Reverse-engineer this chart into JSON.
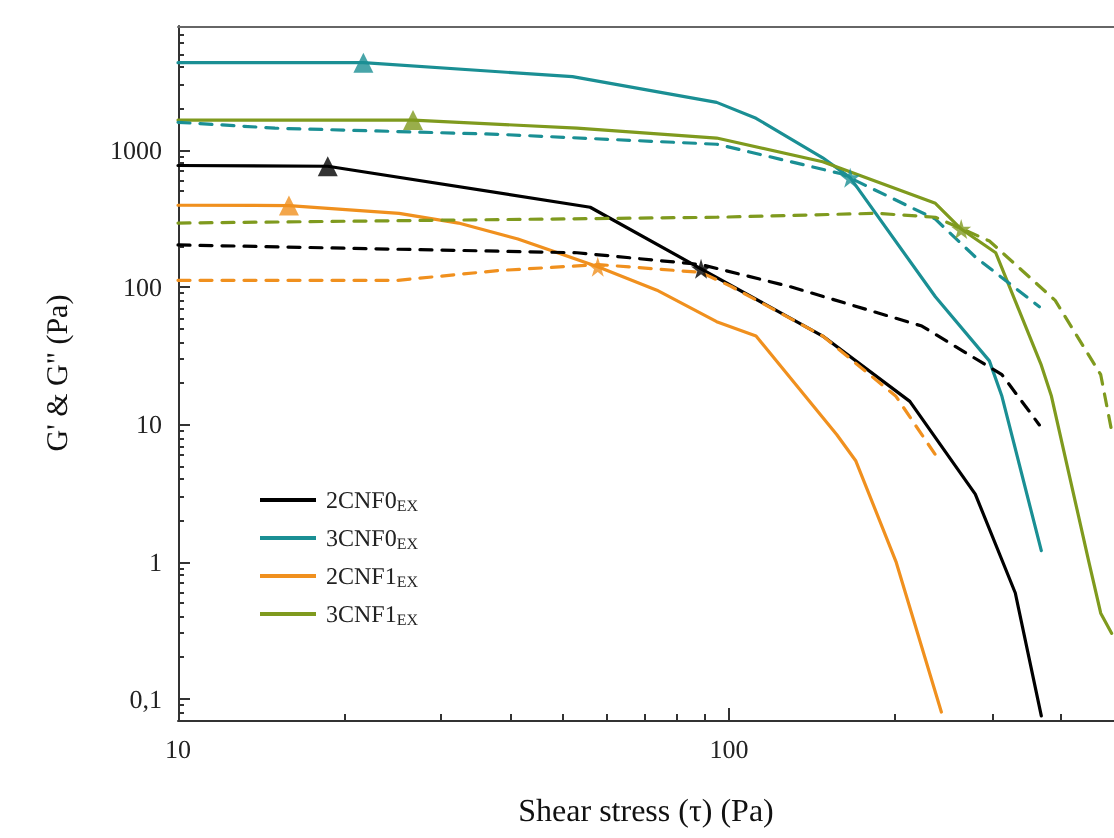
{
  "chart_data": {
    "type": "line",
    "xlabel": "Shear stress (τ) (Pa)",
    "ylabel": "G' & G\" (Pa)",
    "log": "xy",
    "xlim": [
      10,
      500
    ],
    "ylim": [
      0.07,
      8000
    ],
    "xticks": [
      10,
      100
    ],
    "yticks": [
      {
        "value": 0.1,
        "label": "0,1"
      },
      1,
      10,
      100,
      1000
    ],
    "grid": false,
    "legend": "bottom left",
    "marker": "none",
    "series": [
      {
        "name": "2CNF0$_{EX}$",
        "color": "#000000",
        "line_style": "solid",
        "x": [
          10,
          18.7,
          56,
          89,
          148,
          213,
          280,
          331,
          369
        ],
        "values": [
          770,
          760,
          382,
          136,
          44,
          14.7,
          3.1,
          0.59,
          0.075
        ]
      },
      {
        "name": "3CNF0$_{EX}$",
        "color": "#1a8f94",
        "line_style": "solid",
        "x": [
          10,
          21.7,
          52,
          95,
          112,
          148,
          166,
          237,
          297,
          313,
          369
        ],
        "values": [
          4320,
          4320,
          3420,
          2220,
          1700,
          876,
          628,
          85,
          29,
          16,
          1.2
        ]
      },
      {
        "name": "2CNF1$_{EX}$",
        "color": "#f0901e",
        "line_style": "solid",
        "x": [
          10,
          15.9,
          25.2,
          32.3,
          41.4,
          57.8,
          74,
          95,
          112,
          157,
          170,
          201,
          243
        ],
        "values": [
          395,
          393,
          345,
          293,
          224,
          141,
          95,
          56,
          44,
          8.4,
          5.4,
          1.0,
          0.08
        ]
      },
      {
        "name": "3CNF1$_{EX}$",
        "color": "#7f9a1e",
        "line_style": "solid",
        "x": [
          10,
          26.7,
          53,
          95,
          148,
          237,
          264,
          305,
          369,
          385,
          450,
          473,
          495
        ],
        "values": [
          1650,
          1650,
          1440,
          1220,
          820,
          408,
          265,
          178,
          27,
          16,
          1.0,
          0.42,
          0.3
        ]
      },
      {
        "color": "#000000",
        "line_style": "dashed",
        "x": [
          10,
          35,
          53,
          89,
          129,
          224,
          313,
          366
        ],
        "values": [
          203,
          184,
          178,
          146,
          101,
          52,
          23,
          9.9
        ]
      },
      {
        "color": "#1a8f94",
        "line_style": "dashed",
        "x": [
          10,
          15,
          38,
          95,
          98,
          160,
          237,
          280,
          366
        ],
        "values": [
          1590,
          1440,
          1300,
          1100,
          1070,
          670,
          313,
          166,
          72
        ]
      },
      {
        "color": "#f0901e",
        "line_style": "dashed",
        "x": [
          10,
          25,
          38.1,
          58,
          89,
          101,
          148,
          201,
          237
        ],
        "values": [
          112,
          112,
          132,
          146,
          128,
          101,
          44,
          16,
          6
        ]
      },
      {
        "color": "#7f9a1e",
        "line_style": "dashed",
        "x": [
          10,
          95,
          185,
          237,
          297,
          391,
          473,
          495
        ],
        "values": [
          293,
          323,
          345,
          323,
          217,
          80,
          23,
          9
        ]
      },
      {
        "type": "scatter",
        "marker": "triangle",
        "x": [
          18.7,
          21.7,
          15.9,
          26.7
        ],
        "values": [
          760,
          4320,
          393,
          1650
        ],
        "colors": [
          "#000000",
          "#1a8f94",
          "#f0901e",
          "#7f9a1e"
        ]
      },
      {
        "type": "scatter",
        "marker": "star",
        "x": [
          89,
          166,
          57.8,
          264
        ],
        "values": [
          136,
          628,
          141,
          265
        ],
        "colors": [
          "#000000",
          "#1a8f94",
          "#f0901e",
          "#7f9a1e"
        ]
      }
    ]
  }
}
